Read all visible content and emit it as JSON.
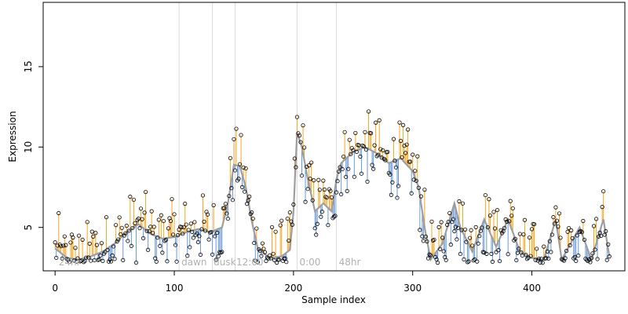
{
  "chart_data": {
    "type": "line",
    "title": "",
    "xlabel": "Sample index",
    "ylabel": "Expression",
    "xlim": [
      -10,
      478
    ],
    "ylim": [
      2.3,
      19.0
    ],
    "x_ticks": [
      0,
      100,
      200,
      300,
      400
    ],
    "y_ticks": [
      5,
      10,
      15
    ],
    "grid": false,
    "legend": "none",
    "colors": {
      "fit_line": "#9e9e9e",
      "residual_above": "#f5a623",
      "residual_below": "#6b98d6",
      "point": "#000000",
      "region_divider": "#d9d9d9",
      "region_label": "#b0b0b0"
    },
    "region_labels": [
      {
        "x": 3,
        "label": "24hr"
      },
      {
        "x": 106,
        "label": "dawn"
      },
      {
        "x": 133,
        "label": "dusk"
      },
      {
        "x": 152,
        "label": "12:00"
      },
      {
        "x": 205,
        "label": "0:00"
      },
      {
        "x": 238,
        "label": "48hr"
      }
    ],
    "region_dividers": [
      104,
      132,
      151,
      203,
      236
    ],
    "fit_anchors": [
      [
        0,
        3.7
      ],
      [
        10,
        3.1
      ],
      [
        20,
        3.0
      ],
      [
        30,
        3.2
      ],
      [
        40,
        3.5
      ],
      [
        50,
        4.0
      ],
      [
        60,
        4.7
      ],
      [
        70,
        5.2
      ],
      [
        80,
        4.6
      ],
      [
        90,
        4.3
      ],
      [
        100,
        4.4
      ],
      [
        110,
        4.7
      ],
      [
        120,
        4.9
      ],
      [
        130,
        4.7
      ],
      [
        140,
        5.0
      ],
      [
        145,
        6.5
      ],
      [
        150,
        8.9
      ],
      [
        155,
        8.8
      ],
      [
        160,
        7.5
      ],
      [
        165,
        5.4
      ],
      [
        170,
        3.7
      ],
      [
        180,
        3.1
      ],
      [
        190,
        3.2
      ],
      [
        197,
        3.6
      ],
      [
        200,
        6.0
      ],
      [
        203,
        10.9
      ],
      [
        207,
        10.0
      ],
      [
        212,
        8.0
      ],
      [
        218,
        6.0
      ],
      [
        225,
        6.5
      ],
      [
        232,
        6.0
      ],
      [
        236,
        8.0
      ],
      [
        240,
        9.0
      ],
      [
        250,
        9.7
      ],
      [
        260,
        10.0
      ],
      [
        270,
        9.6
      ],
      [
        280,
        9.0
      ],
      [
        290,
        9.3
      ],
      [
        300,
        8.5
      ],
      [
        305,
        7.5
      ],
      [
        310,
        5.0
      ],
      [
        315,
        3.0
      ],
      [
        325,
        4.0
      ],
      [
        335,
        6.5
      ],
      [
        340,
        5.0
      ],
      [
        350,
        3.5
      ],
      [
        360,
        5.5
      ],
      [
        370,
        3.8
      ],
      [
        380,
        5.5
      ],
      [
        390,
        3.5
      ],
      [
        400,
        3.1
      ],
      [
        410,
        3.0
      ],
      [
        420,
        5.5
      ],
      [
        425,
        3.0
      ],
      [
        440,
        5.0
      ],
      [
        450,
        3.0
      ],
      [
        460,
        5.5
      ],
      [
        465,
        3.2
      ]
    ],
    "n_points": 466
  }
}
